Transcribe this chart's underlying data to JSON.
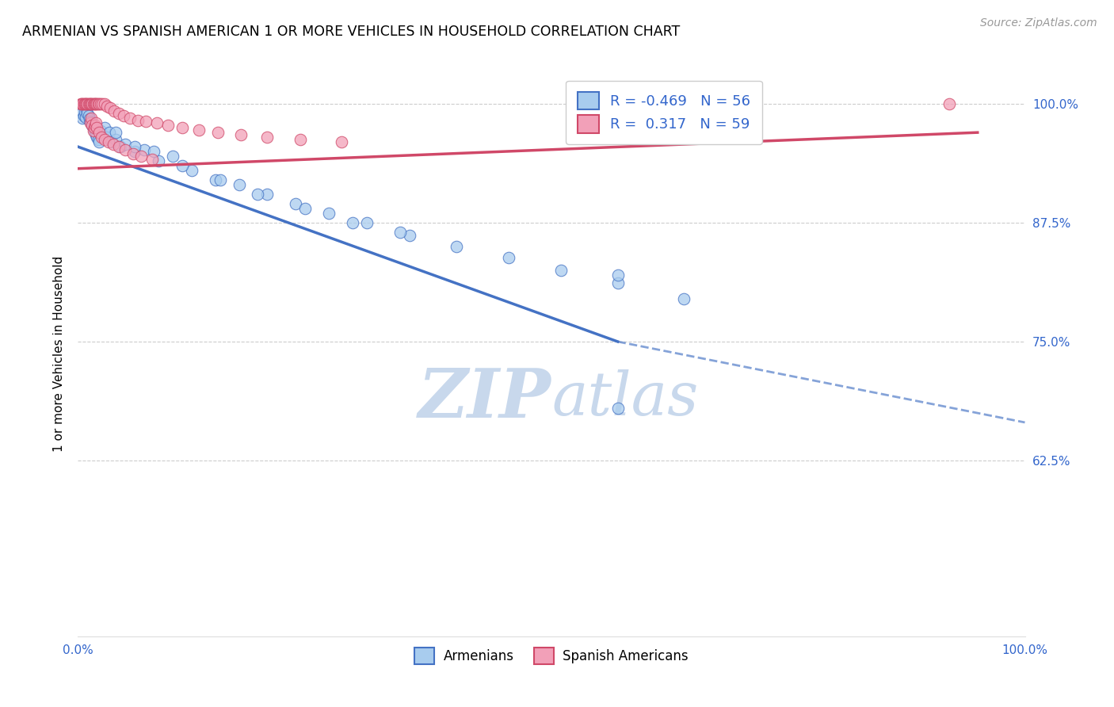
{
  "title": "ARMENIAN VS SPANISH AMERICAN 1 OR MORE VEHICLES IN HOUSEHOLD CORRELATION CHART",
  "source": "Source: ZipAtlas.com",
  "ylabel": "1 or more Vehicles in Household",
  "R_armenian": -0.469,
  "N_armenian": 56,
  "R_spanish": 0.317,
  "N_spanish": 59,
  "color_armenian": "#A8CCEE",
  "color_spanish": "#F2A0B8",
  "color_line_armenian": "#4472C4",
  "color_line_spanish": "#D04868",
  "ymin": 0.44,
  "ymax": 1.035,
  "xmin": 0.0,
  "xmax": 1.0,
  "yticks": [
    0.625,
    0.75,
    0.875,
    1.0
  ],
  "ytick_labels": [
    "62.5%",
    "75.0%",
    "87.5%",
    "100.0%"
  ],
  "legend_armenians": "Armenians",
  "legend_spanish": "Spanish Americans",
  "watermark_color": "#C8D8EC",
  "arm_x": [
    0.004,
    0.005,
    0.006,
    0.007,
    0.008,
    0.009,
    0.01,
    0.011,
    0.012,
    0.013,
    0.014,
    0.015,
    0.016,
    0.017,
    0.018,
    0.019,
    0.02,
    0.021,
    0.022,
    0.024,
    0.026,
    0.028,
    0.03,
    0.033,
    0.036,
    0.04,
    0.045,
    0.05,
    0.06,
    0.07,
    0.085,
    0.1,
    0.12,
    0.145,
    0.17,
    0.2,
    0.23,
    0.265,
    0.305,
    0.35,
    0.4,
    0.455,
    0.51,
    0.57,
    0.64,
    0.04,
    0.06,
    0.08,
    0.11,
    0.15,
    0.19,
    0.24,
    0.29,
    0.34,
    0.57,
    0.57
  ],
  "arm_y": [
    0.99,
    0.985,
    0.988,
    0.992,
    0.986,
    0.994,
    0.99,
    0.988,
    0.984,
    0.982,
    0.98,
    0.978,
    0.975,
    0.973,
    0.97,
    0.968,
    0.965,
    0.963,
    0.96,
    0.972,
    0.968,
    0.975,
    0.965,
    0.97,
    0.96,
    0.963,
    0.955,
    0.958,
    0.95,
    0.952,
    0.94,
    0.945,
    0.93,
    0.92,
    0.915,
    0.905,
    0.895,
    0.885,
    0.875,
    0.862,
    0.85,
    0.838,
    0.825,
    0.812,
    0.795,
    0.97,
    0.955,
    0.95,
    0.935,
    0.92,
    0.905,
    0.89,
    0.875,
    0.865,
    0.82,
    0.68
  ],
  "spa_x": [
    0.003,
    0.004,
    0.005,
    0.006,
    0.007,
    0.008,
    0.009,
    0.01,
    0.011,
    0.012,
    0.013,
    0.014,
    0.015,
    0.016,
    0.017,
    0.018,
    0.019,
    0.02,
    0.021,
    0.022,
    0.024,
    0.026,
    0.028,
    0.031,
    0.034,
    0.038,
    0.043,
    0.048,
    0.055,
    0.063,
    0.072,
    0.083,
    0.095,
    0.11,
    0.128,
    0.148,
    0.172,
    0.2,
    0.235,
    0.278,
    0.013,
    0.014,
    0.015,
    0.016,
    0.017,
    0.018,
    0.019,
    0.02,
    0.022,
    0.025,
    0.028,
    0.032,
    0.037,
    0.043,
    0.05,
    0.058,
    0.067,
    0.078,
    0.92
  ],
  "spa_y": [
    1.0,
    1.0,
    1.0,
    1.0,
    1.0,
    1.0,
    1.0,
    1.0,
    1.0,
    1.0,
    1.0,
    1.0,
    1.0,
    1.0,
    1.0,
    1.0,
    1.0,
    1.0,
    1.0,
    1.0,
    1.0,
    1.0,
    1.0,
    0.998,
    0.996,
    0.993,
    0.99,
    0.988,
    0.985,
    0.983,
    0.982,
    0.98,
    0.978,
    0.975,
    0.973,
    0.97,
    0.968,
    0.965,
    0.963,
    0.96,
    0.98,
    0.985,
    0.978,
    0.972,
    0.975,
    0.978,
    0.98,
    0.975,
    0.97,
    0.965,
    0.963,
    0.96,
    0.958,
    0.955,
    0.952,
    0.948,
    0.945,
    0.942,
    1.0
  ],
  "arm_trendline_x0": 0.0,
  "arm_trendline_y0": 0.955,
  "arm_trendline_x1": 0.57,
  "arm_trendline_y1": 0.75,
  "arm_trendline_xdash0": 0.57,
  "arm_trendline_ydash0": 0.75,
  "arm_trendline_xdash1": 1.0,
  "arm_trendline_ydash1": 0.665,
  "spa_trendline_x0": 0.0,
  "spa_trendline_y0": 0.932,
  "spa_trendline_x1": 0.95,
  "spa_trendline_y1": 0.97
}
